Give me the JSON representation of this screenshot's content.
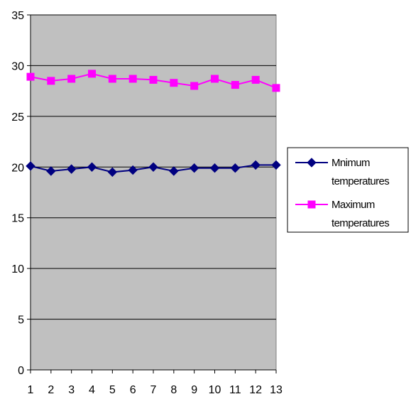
{
  "chart_data": {
    "type": "line",
    "x": [
      1,
      2,
      3,
      4,
      5,
      6,
      7,
      8,
      9,
      10,
      11,
      12,
      13
    ],
    "series": [
      {
        "name": "Mnimum temperatures",
        "name_lines": [
          "Mnimum",
          "temperatures"
        ],
        "color": "#000080",
        "marker": "diamond",
        "values": [
          20.1,
          19.6,
          19.8,
          20.0,
          19.5,
          19.7,
          20.0,
          19.6,
          19.9,
          19.9,
          19.9,
          20.2,
          20.2
        ]
      },
      {
        "name": "Maximum temperatures",
        "name_lines": [
          "Maximum",
          "temperatures"
        ],
        "color": "#FF00FF",
        "marker": "square",
        "values": [
          28.9,
          28.5,
          28.7,
          29.2,
          28.7,
          28.7,
          28.6,
          28.3,
          28.0,
          28.7,
          28.1,
          28.6,
          27.8
        ]
      }
    ],
    "title": "",
    "xlabel": "",
    "ylabel": "",
    "ylim": [
      0,
      35
    ],
    "yticks": [
      0,
      5,
      10,
      15,
      20,
      25,
      30,
      35
    ],
    "xticks": [
      "1",
      "2",
      "3",
      "4",
      "5",
      "6",
      "7",
      "8",
      "9",
      "10",
      "11",
      "12",
      "13"
    ],
    "grid": true,
    "plot_background": "#C0C0C0",
    "legend_position": "right"
  }
}
